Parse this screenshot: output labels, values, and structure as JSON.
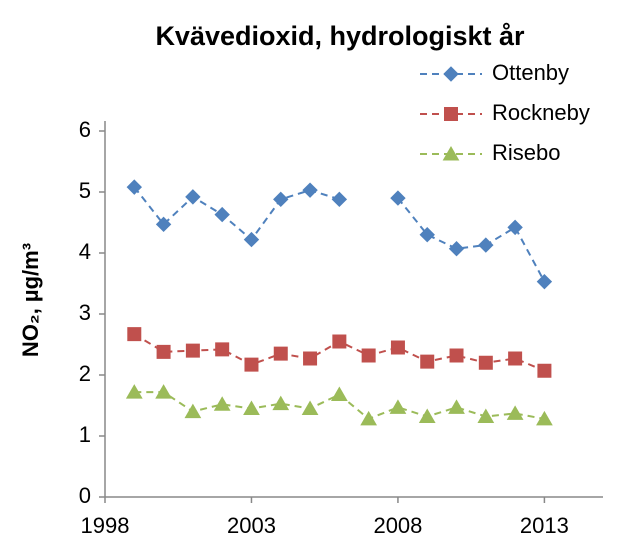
{
  "chart_data": {
    "type": "line",
    "title": "Kvävedioxid, hydrologiskt år",
    "ylabel": "NO₂, µg/m³",
    "x": [
      1999,
      2000,
      2001,
      2002,
      2003,
      2004,
      2005,
      2006,
      2007,
      2008,
      2009,
      2010,
      2011,
      2012,
      2013
    ],
    "series": [
      {
        "name": "Ottenby",
        "color": "#4f81bd",
        "marker": "diamond",
        "values": [
          5.08,
          4.47,
          4.92,
          4.63,
          4.22,
          4.88,
          5.03,
          4.88,
          null,
          4.9,
          4.3,
          4.07,
          4.13,
          4.42,
          3.53
        ]
      },
      {
        "name": "Rockneby",
        "color": "#c0504d",
        "marker": "square",
        "values": [
          2.67,
          2.38,
          2.4,
          2.42,
          2.17,
          2.35,
          2.27,
          2.55,
          2.32,
          2.45,
          2.22,
          2.32,
          2.2,
          2.27,
          2.07
        ]
      },
      {
        "name": "Risebo",
        "color": "#9bbb59",
        "marker": "triangle",
        "values": [
          1.72,
          1.72,
          1.4,
          1.52,
          1.45,
          1.53,
          1.45,
          1.68,
          1.28,
          1.47,
          1.32,
          1.47,
          1.32,
          1.37,
          1.28
        ]
      }
    ],
    "xlim": [
      1998,
      2015
    ],
    "xticks": [
      1998,
      2003,
      2008,
      2013
    ],
    "ylim": [
      0,
      6
    ],
    "yticks": [
      0,
      1,
      2,
      3,
      4,
      5,
      6
    ],
    "grid": false,
    "legend": "top-right",
    "dashed": true
  }
}
